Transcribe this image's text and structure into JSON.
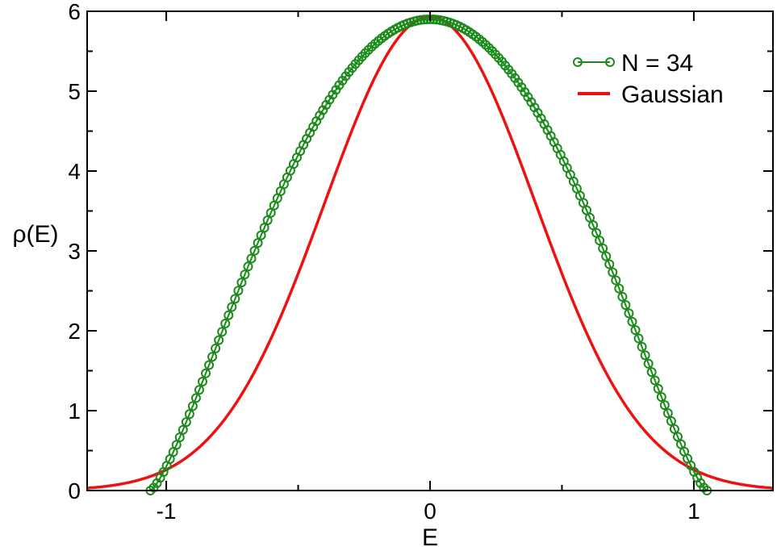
{
  "chart_data": {
    "type": "line",
    "title": "",
    "xlabel": "E",
    "ylabel": "ρ(E)",
    "xlim": [
      -1.3,
      1.3
    ],
    "ylim": [
      0,
      6
    ],
    "x_ticks": [
      {
        "value": -1,
        "label": "-1"
      },
      {
        "value": 0,
        "label": "0"
      },
      {
        "value": 1,
        "label": "1"
      }
    ],
    "y_ticks": [
      {
        "value": 0,
        "label": "0"
      },
      {
        "value": 1,
        "label": "1"
      },
      {
        "value": 2,
        "label": "2"
      },
      {
        "value": 3,
        "label": "3"
      },
      {
        "value": 4,
        "label": "4"
      },
      {
        "value": 5,
        "label": "5"
      },
      {
        "value": 6,
        "label": "6"
      }
    ],
    "grid": false,
    "legend_position": "top-right",
    "series": [
      {
        "name": "N = 34",
        "style": "line-circle-markers",
        "color": "#1a8a1a",
        "x_range": [
          -1.06,
          1.05
        ],
        "num_points": 172,
        "peak": {
          "x": 0.0,
          "y": 5.9
        },
        "profile": "semicircle-like"
      },
      {
        "name": "Gaussian",
        "style": "line",
        "color": "#ee1111",
        "mean": 0.0,
        "peak_y": 5.93,
        "sigma": 0.4,
        "x_range": [
          -1.3,
          1.3
        ]
      }
    ]
  }
}
